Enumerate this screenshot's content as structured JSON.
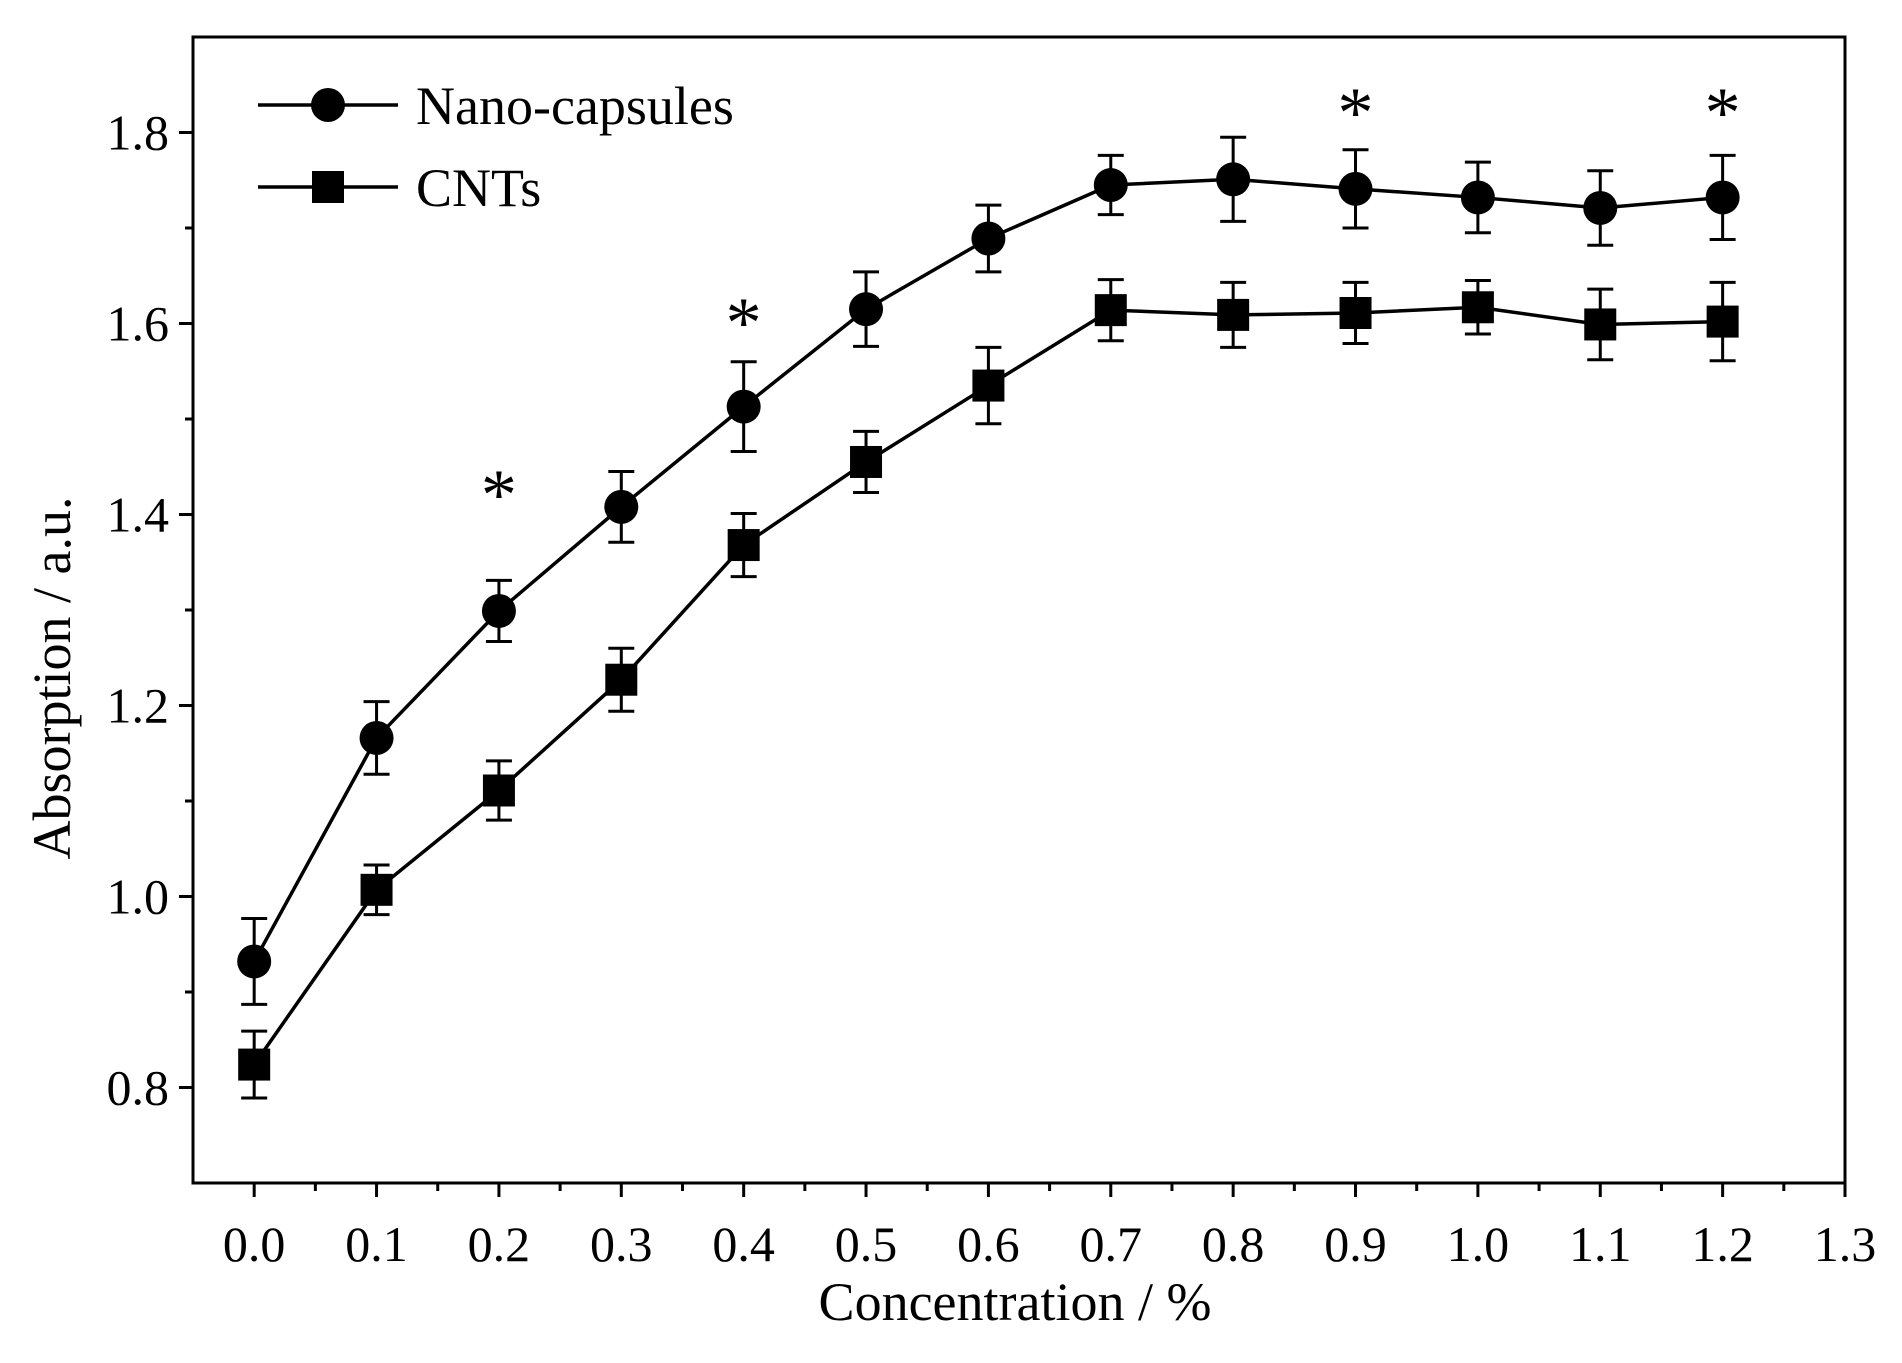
{
  "chart_data": {
    "type": "line",
    "title": "",
    "xlabel": "Concentration / %",
    "ylabel": "Absorption / a.u.",
    "xlim": [
      -0.05,
      1.3
    ],
    "ylim": [
      0.7,
      1.9
    ],
    "x_ticks": [
      "0.0",
      "0.1",
      "0.2",
      "0.3",
      "0.4",
      "0.5",
      "0.6",
      "0.7",
      "0.8",
      "0.9",
      "1.0",
      "1.1",
      "1.2",
      "1.3"
    ],
    "y_ticks": [
      "0.8",
      "1.0",
      "1.2",
      "1.4",
      "1.6",
      "1.8"
    ],
    "grid": false,
    "legend_position": "top-left",
    "x": [
      0.0,
      0.1,
      0.2,
      0.3,
      0.4,
      0.5,
      0.6,
      0.7,
      0.8,
      0.9,
      1.0,
      1.1,
      1.2
    ],
    "series": [
      {
        "name": "Nano-capsules",
        "marker": "circle",
        "color": "#000000",
        "values": [
          0.932,
          1.166,
          1.299,
          1.408,
          1.513,
          1.615,
          1.689,
          1.745,
          1.751,
          1.741,
          1.732,
          1.721,
          1.732
        ],
        "errors": [
          0.045,
          0.038,
          0.032,
          0.037,
          0.047,
          0.039,
          0.035,
          0.031,
          0.044,
          0.041,
          0.037,
          0.039,
          0.044
        ]
      },
      {
        "name": "CNTs",
        "marker": "square",
        "color": "#000000",
        "values": [
          0.824,
          1.007,
          1.111,
          1.227,
          1.368,
          1.455,
          1.535,
          1.614,
          1.609,
          1.611,
          1.617,
          1.599,
          1.602
        ],
        "errors": [
          0.035,
          0.026,
          0.031,
          0.033,
          0.033,
          0.032,
          0.04,
          0.032,
          0.034,
          0.032,
          0.028,
          0.037,
          0.041
        ]
      }
    ],
    "annotations": [
      {
        "text": "*",
        "x": 0.2,
        "y": 1.435
      },
      {
        "text": "*",
        "x": 0.4,
        "y": 1.615
      },
      {
        "text": "*",
        "x": 0.9,
        "y": 1.835
      },
      {
        "text": "*",
        "x": 1.2,
        "y": 1.835
      }
    ]
  }
}
